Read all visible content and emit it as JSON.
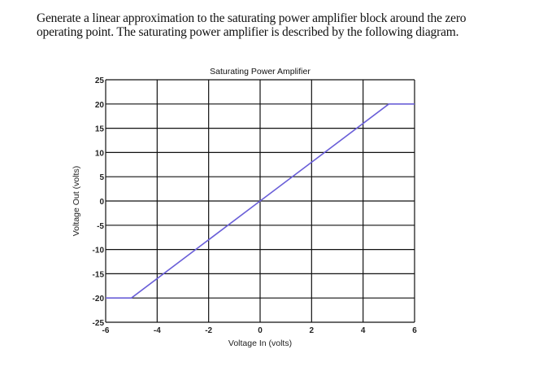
{
  "prompt": {
    "line1": "Generate a linear approximation to the saturating power amplifier block around the zero",
    "line2": "operating point. The saturating power amplifier is described by the following diagram."
  },
  "chart": {
    "title": "Saturating Power Amplifier",
    "xlabel": "Voltage In (volts)",
    "ylabel": "Voltage Out (volts)",
    "line_color": "#6a5fd8",
    "grid_color": "#111111"
  },
  "chart_data": {
    "type": "line",
    "title": "Saturating Power Amplifier",
    "xlabel": "Voltage In (volts)",
    "ylabel": "Voltage Out (volts)",
    "xlim": [
      -6,
      6
    ],
    "ylim": [
      -25,
      25
    ],
    "xticks": [
      -6,
      -4,
      -2,
      0,
      2,
      4,
      6
    ],
    "yticks": [
      25,
      20,
      15,
      10,
      5,
      0,
      -5,
      -10,
      -15,
      -20,
      -25
    ],
    "grid": true,
    "legend": null,
    "series": [
      {
        "name": "Voltage Out",
        "x": [
          -6,
          -5,
          0,
          5,
          6
        ],
        "y": [
          -20,
          -20,
          0,
          20,
          20
        ]
      }
    ]
  }
}
